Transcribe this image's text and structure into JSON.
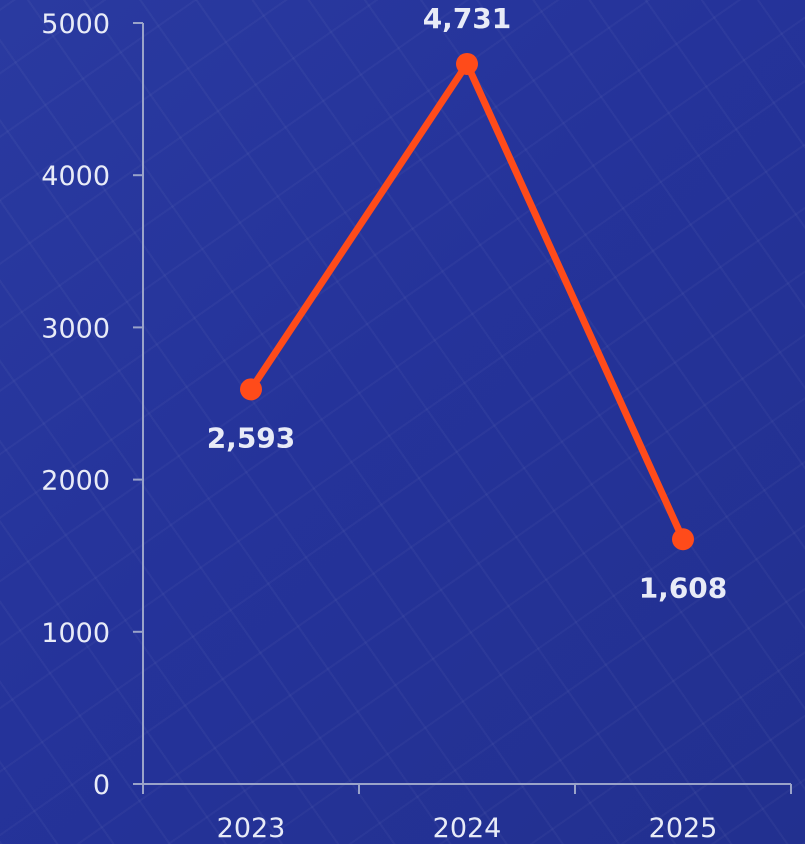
{
  "colors": {
    "background": "#25339a",
    "axis": "#9aa3c9",
    "series": "#ff4b1a",
    "text": "#e8ebf7"
  },
  "chart_data": {
    "type": "line",
    "categories": [
      "2023",
      "2024",
      "2025"
    ],
    "series": [
      {
        "values": [
          2593,
          4731,
          1608
        ]
      }
    ],
    "data_labels": [
      "2,593",
      "4,731",
      "1,608"
    ],
    "yticks": [
      0,
      1000,
      2000,
      3000,
      4000,
      5000
    ],
    "ylim": [
      0,
      5000
    ],
    "grid": false,
    "title": "",
    "xlabel": "",
    "ylabel": ""
  }
}
